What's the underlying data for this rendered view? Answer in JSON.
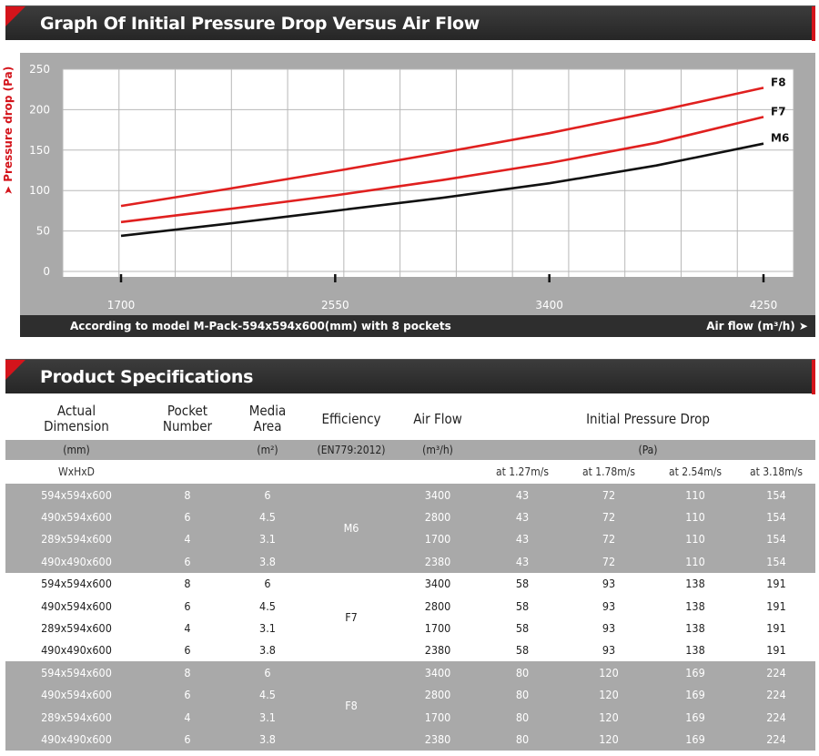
{
  "graph_section": {
    "title": "Graph Of Initial Pressure Drop Versus Air Flow"
  },
  "chart_data": {
    "type": "line",
    "title": "Graph Of Initial Pressure Drop Versus Air Flow",
    "xlabel": "Air flow (m³/h) ➤",
    "ylabel": "➤ Pressure drop (Pa)",
    "note": "According to model M-Pack-594x594x600(mm) with 8 pockets",
    "x": [
      1700,
      2550,
      3400,
      4250
    ],
    "x_tick_labels": [
      "1700",
      "2550",
      "3400",
      "4250"
    ],
    "y_ticks": [
      0,
      50,
      100,
      150,
      200,
      250
    ],
    "ylim": [
      0,
      250
    ],
    "xlim": [
      1700,
      4250
    ],
    "grid": true,
    "series": [
      {
        "name": "F8",
        "color": "#e0201f",
        "x": [
          1700,
          2125,
          2550,
          2975,
          3400,
          3825,
          4250
        ],
        "values": [
          81,
          102,
          124,
          147,
          171,
          198,
          227
        ]
      },
      {
        "name": "F7",
        "color": "#e0201f",
        "x": [
          1700,
          2125,
          2550,
          2975,
          3400,
          3825,
          4250
        ],
        "values": [
          61,
          77,
          94,
          113,
          134,
          159,
          191
        ]
      },
      {
        "name": "M6",
        "color": "#111111",
        "x": [
          1700,
          2125,
          2550,
          2975,
          3400,
          3825,
          4250
        ],
        "values": [
          44,
          59,
          75,
          91,
          109,
          131,
          158
        ]
      }
    ]
  },
  "spec_section": {
    "title": "Product Specifications",
    "headers": {
      "dimension": "Actual\nDimension",
      "pocket": "Pocket\nNumber",
      "media": "Media\nArea",
      "efficiency": "Efficiency",
      "airflow": "Air Flow",
      "pressure": "Initial Pressure Drop"
    },
    "units": {
      "dimension": "(mm)",
      "pocket": "",
      "media": "(m²)",
      "efficiency": "(EN779:2012)",
      "airflow": "(m³/h)",
      "pressure": "(Pa)"
    },
    "subheaders": {
      "dimension": "WxHxD",
      "p1": "at 1.27m/s",
      "p2": "at 1.78m/s",
      "p3": "at 2.54m/s",
      "p4": "at 3.18m/s"
    },
    "groups": [
      {
        "efficiency": "M6",
        "rows": [
          {
            "dimension": "594x594x600",
            "pocket": "8",
            "media": "6",
            "airflow": "3400",
            "p1": "43",
            "p2": "72",
            "p3": "110",
            "p4": "154"
          },
          {
            "dimension": "490x594x600",
            "pocket": "6",
            "media": "4.5",
            "airflow": "2800",
            "p1": "43",
            "p2": "72",
            "p3": "110",
            "p4": "154"
          },
          {
            "dimension": "289x594x600",
            "pocket": "4",
            "media": "3.1",
            "airflow": "1700",
            "p1": "43",
            "p2": "72",
            "p3": "110",
            "p4": "154"
          },
          {
            "dimension": "490x490x600",
            "pocket": "6",
            "media": "3.8",
            "airflow": "2380",
            "p1": "43",
            "p2": "72",
            "p3": "110",
            "p4": "154"
          }
        ]
      },
      {
        "efficiency": "F7",
        "rows": [
          {
            "dimension": "594x594x600",
            "pocket": "8",
            "media": "6",
            "airflow": "3400",
            "p1": "58",
            "p2": "93",
            "p3": "138",
            "p4": "191"
          },
          {
            "dimension": "490x594x600",
            "pocket": "6",
            "media": "4.5",
            "airflow": "2800",
            "p1": "58",
            "p2": "93",
            "p3": "138",
            "p4": "191"
          },
          {
            "dimension": "289x594x600",
            "pocket": "4",
            "media": "3.1",
            "airflow": "1700",
            "p1": "58",
            "p2": "93",
            "p3": "138",
            "p4": "191"
          },
          {
            "dimension": "490x490x600",
            "pocket": "6",
            "media": "3.8",
            "airflow": "2380",
            "p1": "58",
            "p2": "93",
            "p3": "138",
            "p4": "191"
          }
        ]
      },
      {
        "efficiency": "F8",
        "rows": [
          {
            "dimension": "594x594x600",
            "pocket": "8",
            "media": "6",
            "airflow": "3400",
            "p1": "80",
            "p2": "120",
            "p3": "169",
            "p4": "224"
          },
          {
            "dimension": "490x594x600",
            "pocket": "6",
            "media": "4.5",
            "airflow": "2800",
            "p1": "80",
            "p2": "120",
            "p3": "169",
            "p4": "224"
          },
          {
            "dimension": "289x594x600",
            "pocket": "4",
            "media": "3.1",
            "airflow": "1700",
            "p1": "80",
            "p2": "120",
            "p3": "169",
            "p4": "224"
          },
          {
            "dimension": "490x490x600",
            "pocket": "6",
            "media": "3.8",
            "airflow": "2380",
            "p1": "80",
            "p2": "120",
            "p3": "169",
            "p4": "224"
          }
        ]
      }
    ]
  }
}
